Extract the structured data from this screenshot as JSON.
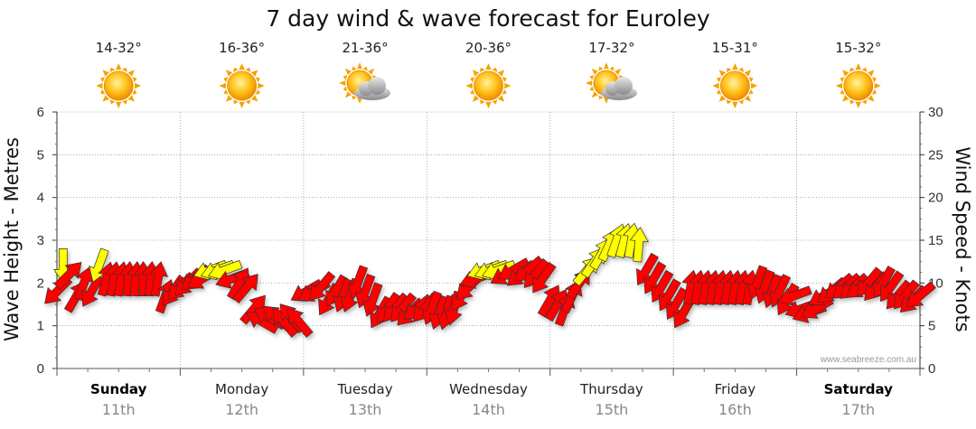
{
  "chart_data": {
    "type": "line",
    "title": "7 day wind & wave forecast for Euroley",
    "ylabel_left": "Wave Height - Metres",
    "ylabel_right": "Wind Speed - Knots",
    "ylim_left": [
      0,
      6
    ],
    "ylim_right": [
      0,
      30
    ],
    "yticks_left": [
      "0",
      "1",
      "2",
      "3",
      "4",
      "5",
      "6"
    ],
    "yticks_right": [
      "0",
      "5",
      "10",
      "15",
      "20",
      "25",
      "30"
    ],
    "grid": true,
    "credit": "www.seabreeze.com.au",
    "days": [
      {
        "name": "Sunday",
        "date": "11th",
        "bold": true,
        "temp": "14-32°",
        "icon": "sun-icon"
      },
      {
        "name": "Monday",
        "date": "12th",
        "bold": false,
        "temp": "16-36°",
        "icon": "sun-icon"
      },
      {
        "name": "Tuesday",
        "date": "13th",
        "bold": false,
        "temp": "21-36°",
        "icon": "sun-cloud-icon"
      },
      {
        "name": "Wednesday",
        "date": "14th",
        "bold": false,
        "temp": "20-36°",
        "icon": "sun-icon"
      },
      {
        "name": "Thursday",
        "date": "15th",
        "bold": false,
        "temp": "17-32°",
        "icon": "sun-cloud-icon"
      },
      {
        "name": "Friday",
        "date": "16th",
        "bold": false,
        "temp": "15-31°",
        "icon": "sun-icon"
      },
      {
        "name": "Saturday",
        "date": "17th",
        "bold": true,
        "temp": "15-32°",
        "icon": "sun-icon"
      }
    ],
    "series": [
      {
        "name": "Wind speed (knots) with direction",
        "x_unit": "days from Sunday 00:00",
        "colors": {
          "strong": "#ff0000",
          "light": "#ffff00",
          "outline": "#333333"
        },
        "points": [
          {
            "x": 0.0,
            "speed": 9,
            "dir": 225,
            "strong": true
          },
          {
            "x": 0.05,
            "speed": 12,
            "dir": 180,
            "strong": false
          },
          {
            "x": 0.1,
            "speed": 11,
            "dir": 45,
            "strong": true
          },
          {
            "x": 0.16,
            "speed": 8.5,
            "dir": 30,
            "strong": true
          },
          {
            "x": 0.22,
            "speed": 10,
            "dir": 20,
            "strong": true
          },
          {
            "x": 0.28,
            "speed": 9,
            "dir": 210,
            "strong": true
          },
          {
            "x": 0.34,
            "speed": 12,
            "dir": 200,
            "strong": false
          },
          {
            "x": 0.4,
            "speed": 10.5,
            "dir": 15,
            "strong": true
          },
          {
            "x": 0.46,
            "speed": 10.5,
            "dir": 10,
            "strong": true
          },
          {
            "x": 0.52,
            "speed": 10.5,
            "dir": 10,
            "strong": true
          },
          {
            "x": 0.58,
            "speed": 10.5,
            "dir": 5,
            "strong": true
          },
          {
            "x": 0.64,
            "speed": 10.5,
            "dir": 5,
            "strong": true
          },
          {
            "x": 0.7,
            "speed": 10.5,
            "dir": 0,
            "strong": true
          },
          {
            "x": 0.76,
            "speed": 10.5,
            "dir": 5,
            "strong": true
          },
          {
            "x": 0.82,
            "speed": 10.5,
            "dir": 10,
            "strong": true
          },
          {
            "x": 0.88,
            "speed": 8.5,
            "dir": 20,
            "strong": true
          },
          {
            "x": 0.94,
            "speed": 9,
            "dir": 215,
            "strong": true
          },
          {
            "x": 1.0,
            "speed": 9.5,
            "dir": 225,
            "strong": true
          },
          {
            "x": 1.06,
            "speed": 10,
            "dir": 225,
            "strong": true
          },
          {
            "x": 1.12,
            "speed": 10.5,
            "dir": 230,
            "strong": true
          },
          {
            "x": 1.18,
            "speed": 10.5,
            "dir": 240,
            "strong": true
          },
          {
            "x": 1.24,
            "speed": 11.5,
            "dir": 250,
            "strong": false
          },
          {
            "x": 1.3,
            "speed": 11.5,
            "dir": 250,
            "strong": false
          },
          {
            "x": 1.36,
            "speed": 11.5,
            "dir": 250,
            "strong": false
          },
          {
            "x": 1.42,
            "speed": 10.5,
            "dir": 250,
            "strong": true
          },
          {
            "x": 1.48,
            "speed": 10,
            "dir": 30,
            "strong": true
          },
          {
            "x": 1.54,
            "speed": 9.5,
            "dir": 40,
            "strong": true
          },
          {
            "x": 1.6,
            "speed": 7,
            "dir": 40,
            "strong": true
          },
          {
            "x": 1.66,
            "speed": 5.5,
            "dir": 300,
            "strong": true
          },
          {
            "x": 1.72,
            "speed": 6,
            "dir": 300,
            "strong": true
          },
          {
            "x": 1.78,
            "speed": 6,
            "dir": 310,
            "strong": true
          },
          {
            "x": 1.84,
            "speed": 5.5,
            "dir": 320,
            "strong": true
          },
          {
            "x": 1.9,
            "speed": 6,
            "dir": 320,
            "strong": true
          },
          {
            "x": 1.96,
            "speed": 5.5,
            "dir": 320,
            "strong": true
          },
          {
            "x": 2.02,
            "speed": 9,
            "dir": 240,
            "strong": true
          },
          {
            "x": 2.08,
            "speed": 9,
            "dir": 240,
            "strong": true
          },
          {
            "x": 2.14,
            "speed": 9.5,
            "dir": 220,
            "strong": true
          },
          {
            "x": 2.2,
            "speed": 8,
            "dir": 210,
            "strong": true
          },
          {
            "x": 2.26,
            "speed": 9,
            "dir": 210,
            "strong": true
          },
          {
            "x": 2.32,
            "speed": 8.5,
            "dir": 200,
            "strong": true
          },
          {
            "x": 2.38,
            "speed": 8.5,
            "dir": 200,
            "strong": true
          },
          {
            "x": 2.44,
            "speed": 10,
            "dir": 200,
            "strong": true
          },
          {
            "x": 2.5,
            "speed": 9,
            "dir": 200,
            "strong": true
          },
          {
            "x": 2.56,
            "speed": 8,
            "dir": 200,
            "strong": true
          },
          {
            "x": 2.62,
            "speed": 6.5,
            "dir": 210,
            "strong": true
          },
          {
            "x": 2.68,
            "speed": 7,
            "dir": 215,
            "strong": true
          },
          {
            "x": 2.74,
            "speed": 7,
            "dir": 220,
            "strong": true
          },
          {
            "x": 2.8,
            "speed": 7,
            "dir": 220,
            "strong": true
          },
          {
            "x": 2.86,
            "speed": 6.5,
            "dir": 225,
            "strong": true
          },
          {
            "x": 2.92,
            "speed": 7,
            "dir": 230,
            "strong": true
          },
          {
            "x": 2.98,
            "speed": 7,
            "dir": 220,
            "strong": true
          },
          {
            "x": 3.04,
            "speed": 7,
            "dir": 200,
            "strong": true
          },
          {
            "x": 3.1,
            "speed": 6.5,
            "dir": 200,
            "strong": true
          },
          {
            "x": 3.16,
            "speed": 6.5,
            "dir": 195,
            "strong": true
          },
          {
            "x": 3.22,
            "speed": 7,
            "dir": 195,
            "strong": true
          },
          {
            "x": 3.28,
            "speed": 8.5,
            "dir": 210,
            "strong": true
          },
          {
            "x": 3.34,
            "speed": 9.5,
            "dir": 225,
            "strong": true
          },
          {
            "x": 3.4,
            "speed": 10.5,
            "dir": 250,
            "strong": true
          },
          {
            "x": 3.46,
            "speed": 11.5,
            "dir": 250,
            "strong": false
          },
          {
            "x": 3.52,
            "speed": 11.5,
            "dir": 250,
            "strong": false
          },
          {
            "x": 3.58,
            "speed": 11.5,
            "dir": 250,
            "strong": false
          },
          {
            "x": 3.64,
            "speed": 11,
            "dir": 240,
            "strong": true
          },
          {
            "x": 3.7,
            "speed": 11.5,
            "dir": 240,
            "strong": true
          },
          {
            "x": 3.76,
            "speed": 11,
            "dir": 230,
            "strong": true
          },
          {
            "x": 3.82,
            "speed": 11.5,
            "dir": 230,
            "strong": true
          },
          {
            "x": 3.88,
            "speed": 11,
            "dir": 220,
            "strong": true
          },
          {
            "x": 3.94,
            "speed": 10.5,
            "dir": 215,
            "strong": true
          },
          {
            "x": 4.0,
            "speed": 8,
            "dir": 30,
            "strong": true
          },
          {
            "x": 4.06,
            "speed": 7.5,
            "dir": 30,
            "strong": true
          },
          {
            "x": 4.12,
            "speed": 7,
            "dir": 20,
            "strong": true
          },
          {
            "x": 4.18,
            "speed": 8.5,
            "dir": 25,
            "strong": true
          },
          {
            "x": 4.24,
            "speed": 10,
            "dir": 35,
            "strong": true
          },
          {
            "x": 4.3,
            "speed": 11.5,
            "dir": 40,
            "strong": false
          },
          {
            "x": 4.36,
            "speed": 12.5,
            "dir": 35,
            "strong": false
          },
          {
            "x": 4.42,
            "speed": 13.5,
            "dir": 30,
            "strong": false
          },
          {
            "x": 4.48,
            "speed": 14.5,
            "dir": 25,
            "strong": false
          },
          {
            "x": 4.54,
            "speed": 15,
            "dir": 20,
            "strong": false
          },
          {
            "x": 4.6,
            "speed": 15,
            "dir": 15,
            "strong": false
          },
          {
            "x": 4.66,
            "speed": 15,
            "dir": 10,
            "strong": false
          },
          {
            "x": 4.72,
            "speed": 14.5,
            "dir": 5,
            "strong": false
          },
          {
            "x": 4.78,
            "speed": 11.5,
            "dir": 210,
            "strong": true
          },
          {
            "x": 4.84,
            "speed": 10.5,
            "dir": 210,
            "strong": true
          },
          {
            "x": 4.9,
            "speed": 9.5,
            "dir": 210,
            "strong": true
          },
          {
            "x": 4.96,
            "speed": 8.5,
            "dir": 210,
            "strong": true
          },
          {
            "x": 5.02,
            "speed": 7.5,
            "dir": 210,
            "strong": true
          },
          {
            "x": 5.08,
            "speed": 6.5,
            "dir": 210,
            "strong": true
          },
          {
            "x": 5.14,
            "speed": 9.5,
            "dir": 10,
            "strong": true
          },
          {
            "x": 5.2,
            "speed": 9.5,
            "dir": 10,
            "strong": true
          },
          {
            "x": 5.26,
            "speed": 9.5,
            "dir": 10,
            "strong": true
          },
          {
            "x": 5.32,
            "speed": 9.5,
            "dir": 10,
            "strong": true
          },
          {
            "x": 5.38,
            "speed": 9.5,
            "dir": 10,
            "strong": true
          },
          {
            "x": 5.44,
            "speed": 9.5,
            "dir": 10,
            "strong": true
          },
          {
            "x": 5.5,
            "speed": 9.5,
            "dir": 10,
            "strong": true
          },
          {
            "x": 5.56,
            "speed": 9.5,
            "dir": 10,
            "strong": true
          },
          {
            "x": 5.62,
            "speed": 9.5,
            "dir": 10,
            "strong": true
          },
          {
            "x": 5.68,
            "speed": 10,
            "dir": 200,
            "strong": true
          },
          {
            "x": 5.74,
            "speed": 9.5,
            "dir": 200,
            "strong": true
          },
          {
            "x": 5.8,
            "speed": 9,
            "dir": 200,
            "strong": true
          },
          {
            "x": 5.86,
            "speed": 9,
            "dir": 205,
            "strong": true
          },
          {
            "x": 5.92,
            "speed": 8,
            "dir": 210,
            "strong": true
          },
          {
            "x": 5.98,
            "speed": 8.5,
            "dir": 250,
            "strong": true
          },
          {
            "x": 6.04,
            "speed": 7,
            "dir": 250,
            "strong": true
          },
          {
            "x": 6.1,
            "speed": 6.5,
            "dir": 250,
            "strong": true
          },
          {
            "x": 6.16,
            "speed": 7,
            "dir": 240,
            "strong": true
          },
          {
            "x": 6.22,
            "speed": 8.5,
            "dir": 240,
            "strong": true
          },
          {
            "x": 6.28,
            "speed": 9,
            "dir": 230,
            "strong": true
          },
          {
            "x": 6.34,
            "speed": 9.5,
            "dir": 230,
            "strong": true
          },
          {
            "x": 6.4,
            "speed": 9.5,
            "dir": 230,
            "strong": true
          },
          {
            "x": 6.46,
            "speed": 9.5,
            "dir": 230,
            "strong": true
          },
          {
            "x": 6.52,
            "speed": 9.5,
            "dir": 235,
            "strong": true
          },
          {
            "x": 6.58,
            "speed": 10,
            "dir": 220,
            "strong": true
          },
          {
            "x": 6.64,
            "speed": 9.5,
            "dir": 220,
            "strong": true
          },
          {
            "x": 6.7,
            "speed": 10,
            "dir": 210,
            "strong": true
          },
          {
            "x": 6.76,
            "speed": 9.5,
            "dir": 215,
            "strong": true
          },
          {
            "x": 6.82,
            "speed": 8.5,
            "dir": 220,
            "strong": true
          },
          {
            "x": 6.88,
            "speed": 8.5,
            "dir": 220,
            "strong": true
          },
          {
            "x": 6.94,
            "speed": 8,
            "dir": 225,
            "strong": true
          },
          {
            "x": 7.0,
            "speed": 8.5,
            "dir": 230,
            "strong": true
          }
        ]
      }
    ]
  }
}
